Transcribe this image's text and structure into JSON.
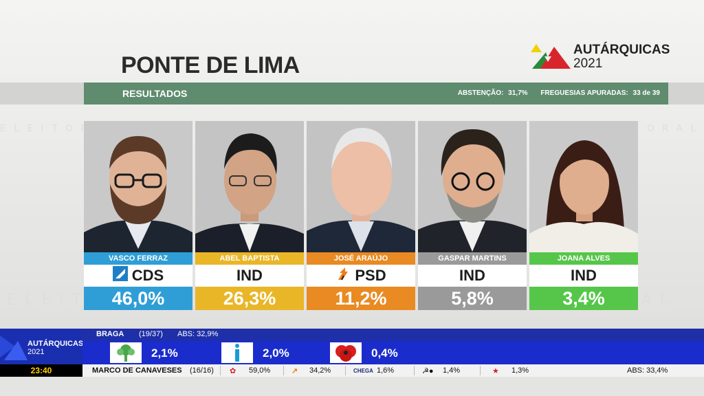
{
  "municipality": "PONTE DE LIMA",
  "brand": {
    "name": "AUTÁRQUICAS",
    "year": "2021"
  },
  "results_bar": {
    "label": "RESULTADOS",
    "abstention_label": "ABSTENÇÃO:",
    "abstention_value": "31,7%",
    "parishes_label": "FREGUESIAS APURADAS:",
    "parishes_value": "33 de 39"
  },
  "watermark": "ELEITORAL",
  "candidates": [
    {
      "name": "VASCO FERRAZ",
      "party": "CDS",
      "percent": "46,0%",
      "color": "#2f9ed6"
    },
    {
      "name": "ABEL BAPTISTA",
      "party": "IND",
      "percent": "26,3%",
      "color": "#e9b628"
    },
    {
      "name": "JOSÉ ARAÚJO",
      "party": "PSD",
      "percent": "11,2%",
      "color": "#e98a22"
    },
    {
      "name": "GASPAR MARTINS",
      "party": "IND",
      "percent": "5,8%",
      "color": "#9a9a9a"
    },
    {
      "name": "JOANA ALVES",
      "party": "IND",
      "percent": "3,4%",
      "color": "#56c64a"
    }
  ],
  "ticker": {
    "brand_name": "AUTÁRQUICAS",
    "brand_year": "2021",
    "time": "23:40",
    "district": "BRAGA",
    "district_count": "(19/37)",
    "district_abs": "ABS: 32,9%",
    "main_items": [
      {
        "icon": "tree-icon",
        "value": "2,1%"
      },
      {
        "icon": "i-letter-icon",
        "value": "2,0%"
      },
      {
        "icon": "poppy-icon",
        "value": "0,4%"
      }
    ],
    "bottom": {
      "place": "MARCO DE CANAVESES",
      "count": "(16/16)",
      "items": [
        {
          "icon": "ps-icon",
          "value": "59,0%"
        },
        {
          "icon": "psd-arrow-icon",
          "value": "34,2%"
        },
        {
          "icon": "chega-icon",
          "label": "CHEGA",
          "value": "1,6%"
        },
        {
          "icon": "cdu-icon",
          "value": "1,4%"
        },
        {
          "icon": "be-star-icon",
          "value": "1,3%"
        }
      ],
      "abs": "ABS: 33,4%"
    }
  }
}
